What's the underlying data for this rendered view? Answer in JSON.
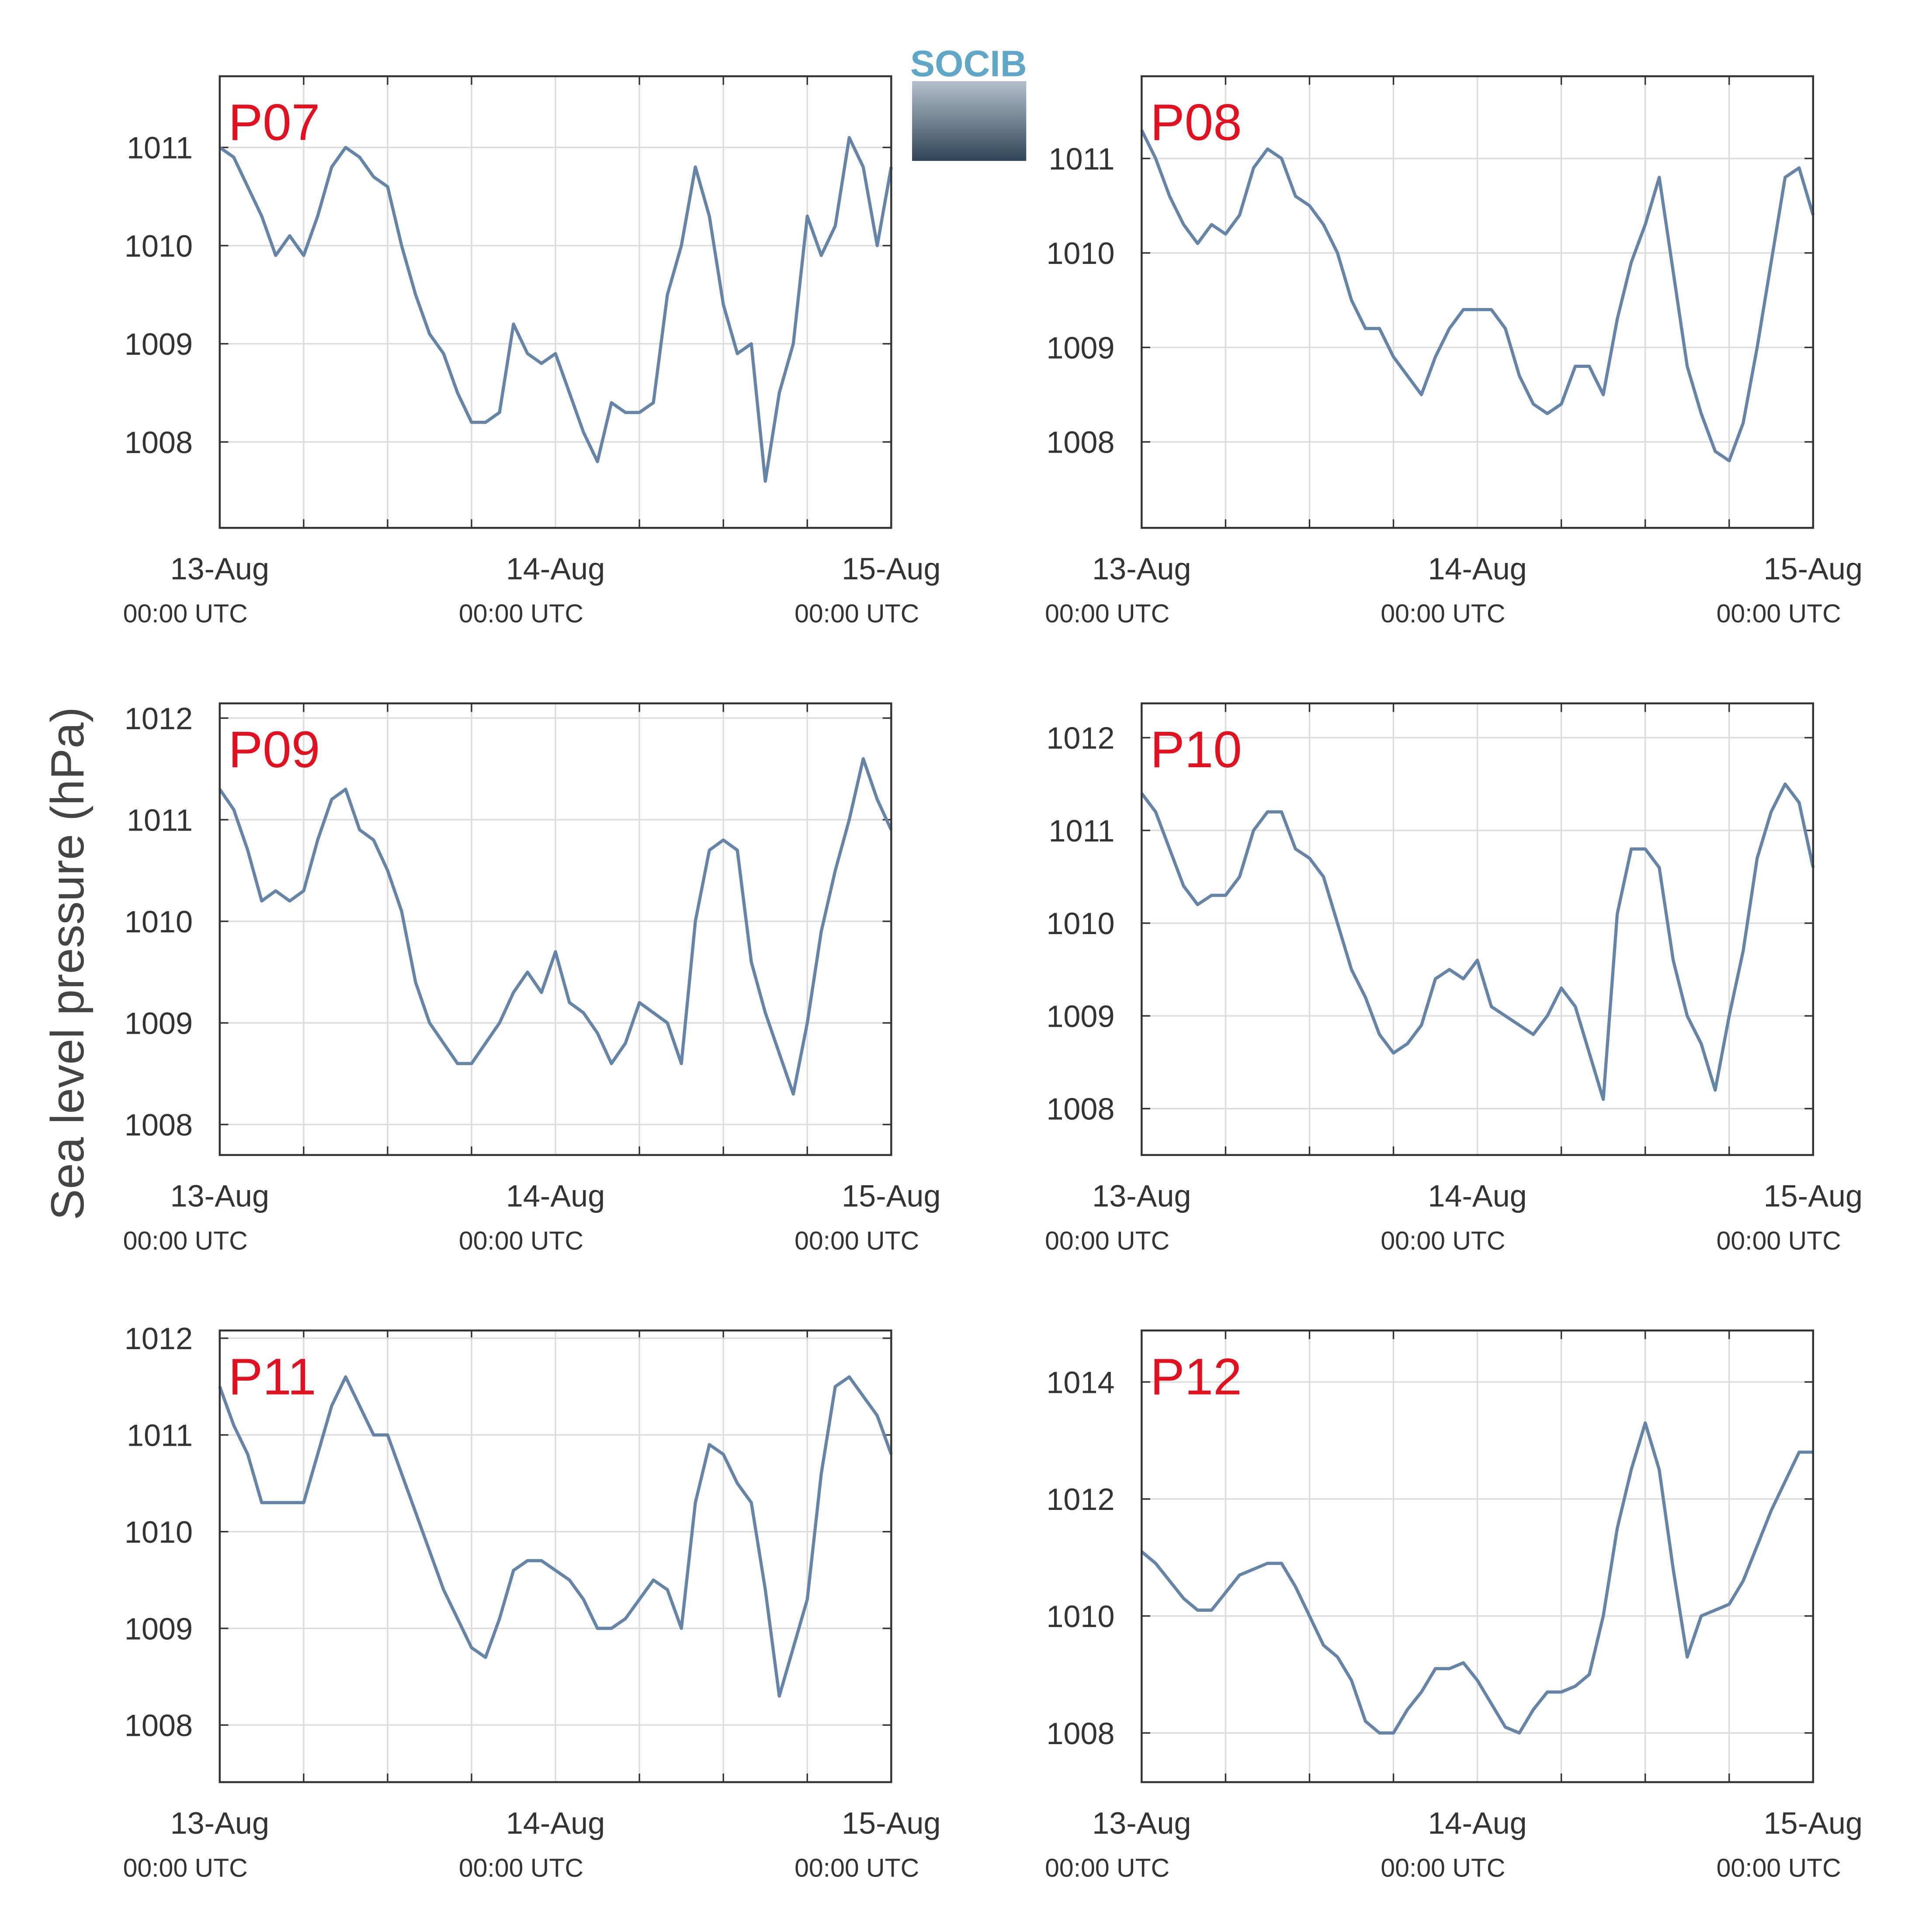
{
  "y_label": "Sea level pressure (hPa)",
  "logo": "SOCIB",
  "chart_data": [
    {
      "type": "line",
      "title": "P07",
      "color": "#6585a8",
      "x": [
        0,
        1,
        2,
        3,
        4,
        5,
        6,
        7,
        8,
        9,
        10,
        11,
        12,
        13,
        14,
        15,
        16,
        17,
        18,
        19,
        20,
        21,
        22,
        23,
        24,
        25,
        26,
        27,
        28,
        29,
        30,
        31,
        32,
        33,
        34,
        35,
        36,
        37,
        38,
        39,
        40,
        41,
        42,
        43,
        44,
        45,
        46,
        47,
        48
      ],
      "values": [
        1011.0,
        1010.9,
        1010.6,
        1010.3,
        1009.9,
        1010.1,
        1009.9,
        1010.3,
        1010.8,
        1011.0,
        1010.9,
        1010.7,
        1010.6,
        1010.0,
        1009.5,
        1009.1,
        1008.9,
        1008.5,
        1008.2,
        1008.2,
        1008.3,
        1009.2,
        1008.9,
        1008.8,
        1008.9,
        1008.5,
        1008.1,
        1007.8,
        1008.4,
        1008.3,
        1008.3,
        1008.4,
        1009.5,
        1010.0,
        1010.8,
        1010.3,
        1009.4,
        1008.9,
        1009.0,
        1007.6,
        1008.5,
        1009.0,
        1010.3,
        1009.9,
        1010.2,
        1011.1,
        1010.8,
        1010.0,
        1010.8
      ],
      "xlim": [
        0,
        48
      ],
      "xticks": [
        {
          "value": 0,
          "label": "13-Aug",
          "sublabel": "00:00 UTC"
        },
        {
          "value": 24,
          "label": "14-Aug",
          "sublabel": "00:00 UTC"
        },
        {
          "value": 48,
          "label": "15-Aug",
          "sublabel": "00:00 UTC"
        }
      ],
      "grid_x": [
        6,
        12,
        18,
        30,
        36,
        42
      ],
      "ylim": [
        1007.125,
        1011.725
      ],
      "yticks": [
        1008,
        1009,
        1010,
        1011
      ],
      "grid": true
    },
    {
      "type": "line",
      "title": "P08",
      "color": "#6585a8",
      "x": [
        0,
        1,
        2,
        3,
        4,
        5,
        6,
        7,
        8,
        9,
        10,
        11,
        12,
        13,
        14,
        15,
        16,
        17,
        18,
        19,
        20,
        21,
        22,
        23,
        24,
        25,
        26,
        27,
        28,
        29,
        30,
        31,
        32,
        33,
        34,
        35,
        36,
        37,
        38,
        39,
        40,
        41,
        42,
        43,
        44,
        45,
        46,
        47,
        48
      ],
      "values": [
        1011.3,
        1011.0,
        1010.6,
        1010.3,
        1010.1,
        1010.3,
        1010.2,
        1010.4,
        1010.9,
        1011.1,
        1011.0,
        1010.6,
        1010.5,
        1010.3,
        1010.0,
        1009.5,
        1009.2,
        1009.2,
        1008.9,
        1008.7,
        1008.5,
        1008.9,
        1009.2,
        1009.4,
        1009.4,
        1009.4,
        1009.2,
        1008.7,
        1008.4,
        1008.3,
        1008.4,
        1008.8,
        1008.8,
        1008.5,
        1009.3,
        1009.9,
        1010.3,
        1010.8,
        1009.8,
        1008.8,
        1008.3,
        1007.9,
        1007.8,
        1008.2,
        1009.0,
        1009.9,
        1010.8,
        1010.9,
        1010.4
      ],
      "xlim": [
        0,
        48
      ],
      "xticks": [
        {
          "value": 0,
          "label": "13-Aug",
          "sublabel": "00:00 UTC"
        },
        {
          "value": 24,
          "label": "14-Aug",
          "sublabel": "00:00 UTC"
        },
        {
          "value": 48,
          "label": "15-Aug",
          "sublabel": "00:00 UTC"
        }
      ],
      "grid_x": [
        6,
        12,
        18,
        30,
        36,
        42
      ],
      "ylim": [
        1007.09,
        1011.87
      ],
      "yticks": [
        1008,
        1009,
        1010,
        1011
      ],
      "grid": true
    },
    {
      "type": "line",
      "title": "P09",
      "color": "#6585a8",
      "x": [
        0,
        1,
        2,
        3,
        4,
        5,
        6,
        7,
        8,
        9,
        10,
        11,
        12,
        13,
        14,
        15,
        16,
        17,
        18,
        19,
        20,
        21,
        22,
        23,
        24,
        25,
        26,
        27,
        28,
        29,
        30,
        31,
        32,
        33,
        34,
        35,
        36,
        37,
        38,
        39,
        40,
        41,
        42,
        43,
        44,
        45,
        46,
        47,
        48
      ],
      "values": [
        1011.3,
        1011.1,
        1010.7,
        1010.2,
        1010.3,
        1010.2,
        1010.3,
        1010.8,
        1011.2,
        1011.3,
        1010.9,
        1010.8,
        1010.5,
        1010.1,
        1009.4,
        1009.0,
        1008.8,
        1008.6,
        1008.6,
        1008.8,
        1009.0,
        1009.3,
        1009.5,
        1009.3,
        1009.7,
        1009.2,
        1009.1,
        1008.9,
        1008.6,
        1008.8,
        1009.2,
        1009.1,
        1009.0,
        1008.6,
        1010.0,
        1010.7,
        1010.8,
        1010.7,
        1009.6,
        1009.1,
        1008.7,
        1008.3,
        1009.0,
        1009.9,
        1010.5,
        1011.0,
        1011.6,
        1011.2,
        1010.9
      ],
      "xlim": [
        0,
        48
      ],
      "xticks": [
        {
          "value": 0,
          "label": "13-Aug",
          "sublabel": "00:00 UTC"
        },
        {
          "value": 24,
          "label": "14-Aug",
          "sublabel": "00:00 UTC"
        },
        {
          "value": 48,
          "label": "15-Aug",
          "sublabel": "00:00 UTC"
        }
      ],
      "grid_x": [
        6,
        12,
        18,
        30,
        36,
        42
      ],
      "ylim": [
        1007.7,
        1012.145
      ],
      "yticks": [
        1008,
        1009,
        1010,
        1011,
        1012
      ],
      "grid": true
    },
    {
      "type": "line",
      "title": "P10",
      "color": "#6585a8",
      "x": [
        0,
        1,
        2,
        3,
        4,
        5,
        6,
        7,
        8,
        9,
        10,
        11,
        12,
        13,
        14,
        15,
        16,
        17,
        18,
        19,
        20,
        21,
        22,
        23,
        24,
        25,
        26,
        27,
        28,
        29,
        30,
        31,
        32,
        33,
        34,
        35,
        36,
        37,
        38,
        39,
        40,
        41,
        42,
        43,
        44,
        45,
        46,
        47,
        48
      ],
      "values": [
        1011.4,
        1011.2,
        1010.8,
        1010.4,
        1010.2,
        1010.3,
        1010.3,
        1010.5,
        1011.0,
        1011.2,
        1011.2,
        1010.8,
        1010.7,
        1010.5,
        1010.0,
        1009.5,
        1009.2,
        1008.8,
        1008.6,
        1008.7,
        1008.9,
        1009.4,
        1009.5,
        1009.4,
        1009.6,
        1009.1,
        1009.0,
        1008.9,
        1008.8,
        1009.0,
        1009.3,
        1009.1,
        1008.6,
        1008.1,
        1010.1,
        1010.8,
        1010.8,
        1010.6,
        1009.6,
        1009.0,
        1008.7,
        1008.2,
        1009.0,
        1009.7,
        1010.7,
        1011.2,
        1011.5,
        1011.3,
        1010.6
      ],
      "xlim": [
        0,
        48
      ],
      "xticks": [
        {
          "value": 0,
          "label": "13-Aug",
          "sublabel": "00:00 UTC"
        },
        {
          "value": 24,
          "label": "14-Aug",
          "sublabel": "00:00 UTC"
        },
        {
          "value": 48,
          "label": "15-Aug",
          "sublabel": "00:00 UTC"
        }
      ],
      "grid_x": [
        6,
        12,
        18,
        30,
        36,
        42
      ],
      "ylim": [
        1007.5,
        1012.37
      ],
      "yticks": [
        1008,
        1009,
        1010,
        1011,
        1012
      ],
      "grid": true
    },
    {
      "type": "line",
      "title": "P11",
      "color": "#6585a8",
      "x": [
        0,
        1,
        2,
        3,
        4,
        5,
        6,
        7,
        8,
        9,
        10,
        11,
        12,
        13,
        14,
        15,
        16,
        17,
        18,
        19,
        20,
        21,
        22,
        23,
        24,
        25,
        26,
        27,
        28,
        29,
        30,
        31,
        32,
        33,
        34,
        35,
        36,
        37,
        38,
        39,
        40,
        41,
        42,
        43,
        44,
        45,
        46,
        47,
        48
      ],
      "values": [
        1011.5,
        1011.1,
        1010.8,
        1010.3,
        1010.3,
        1010.3,
        1010.3,
        1010.8,
        1011.3,
        1011.6,
        1011.3,
        1011.0,
        1011.0,
        1010.6,
        1010.2,
        1009.8,
        1009.4,
        1009.1,
        1008.8,
        1008.7,
        1009.1,
        1009.6,
        1009.7,
        1009.7,
        1009.6,
        1009.5,
        1009.3,
        1009.0,
        1009.0,
        1009.1,
        1009.3,
        1009.5,
        1009.4,
        1009.0,
        1010.3,
        1010.9,
        1010.8,
        1010.5,
        1010.3,
        1009.4,
        1008.3,
        1008.8,
        1009.3,
        1010.6,
        1011.5,
        1011.6,
        1011.4,
        1011.2,
        1010.8
      ],
      "xlim": [
        0,
        48
      ],
      "xticks": [
        {
          "value": 0,
          "label": "13-Aug",
          "sublabel": "00:00 UTC"
        },
        {
          "value": 24,
          "label": "14-Aug",
          "sublabel": "00:00 UTC"
        },
        {
          "value": 48,
          "label": "15-Aug",
          "sublabel": "00:00 UTC"
        }
      ],
      "grid_x": [
        6,
        12,
        18,
        30,
        36,
        42
      ],
      "ylim": [
        1007.41,
        1012.08
      ],
      "yticks": [
        1008,
        1009,
        1010,
        1011,
        1012
      ],
      "grid": true
    },
    {
      "type": "line",
      "title": "P12",
      "color": "#6585a8",
      "x": [
        0,
        1,
        2,
        3,
        4,
        5,
        6,
        7,
        8,
        9,
        10,
        11,
        12,
        13,
        14,
        15,
        16,
        17,
        18,
        19,
        20,
        21,
        22,
        23,
        24,
        25,
        26,
        27,
        28,
        29,
        30,
        31,
        32,
        33,
        34,
        35,
        36,
        37,
        38,
        39,
        40,
        41,
        42,
        43,
        44,
        45,
        46,
        47,
        48
      ],
      "values": [
        1011.1,
        1010.9,
        1010.6,
        1010.3,
        1010.1,
        1010.1,
        1010.4,
        1010.7,
        1010.8,
        1010.9,
        1010.9,
        1010.5,
        1010.0,
        1009.5,
        1009.3,
        1008.9,
        1008.2,
        1008.0,
        1008.0,
        1008.4,
        1008.7,
        1009.1,
        1009.1,
        1009.2,
        1008.9,
        1008.5,
        1008.1,
        1008.0,
        1008.4,
        1008.7,
        1008.7,
        1008.8,
        1009.0,
        1010.0,
        1011.5,
        1012.5,
        1013.3,
        1012.5,
        1010.8,
        1009.3,
        1010.0,
        1010.1,
        1010.2,
        1010.6,
        1011.2,
        1011.8,
        1012.3,
        1012.8,
        1012.8
      ],
      "xlim": [
        0,
        48
      ],
      "xticks": [
        {
          "value": 0,
          "label": "13-Aug",
          "sublabel": "00:00 UTC"
        },
        {
          "value": 24,
          "label": "14-Aug",
          "sublabel": "00:00 UTC"
        },
        {
          "value": 48,
          "label": "15-Aug",
          "sublabel": "00:00 UTC"
        }
      ],
      "grid_x": [
        6,
        12,
        18,
        30,
        36,
        42
      ],
      "ylim": [
        1007.16,
        1014.88
      ],
      "yticks": [
        1008,
        1010,
        1012,
        1014
      ],
      "grid": true
    }
  ]
}
